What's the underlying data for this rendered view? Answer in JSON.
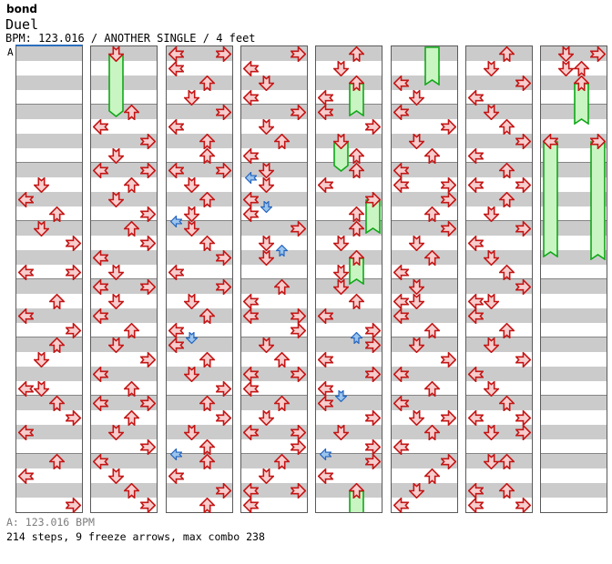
{
  "header": {
    "title": "bond",
    "song": "Duel",
    "meta": "BPM: 123.016 / ANOTHER SINGLE / 4 feet"
  },
  "footer": {
    "bpm_line": "A: 123.016 BPM",
    "stats_line": "214 steps, 9 freeze arrows, max combo 238"
  },
  "colors": {
    "stripe": "#cbcbcb",
    "arrow_red_border": "#c41616",
    "arrow_red_fill": "#f7cdcd",
    "arrow_blue_border": "#2465c0",
    "arrow_blue_fill": "#9cc5ec",
    "freeze_fill": "#c9f5c2",
    "freeze_border": "#10a818",
    "measure_line": "#858585",
    "column_border": "#5a5a5a",
    "section_line": "#2a6fc0"
  },
  "chart": {
    "section_label": "A",
    "rows_per_column": 32,
    "measures_per_column": 8,
    "columns": [
      {
        "arrows": [
          [
            9,
            "D"
          ],
          [
            10,
            "L"
          ],
          [
            11,
            "U"
          ],
          [
            12,
            "D"
          ],
          [
            13,
            "R"
          ],
          [
            15,
            "L"
          ],
          [
            15,
            "R"
          ],
          [
            17,
            "U"
          ],
          [
            18,
            "L"
          ],
          [
            19,
            "R"
          ],
          [
            20,
            "U"
          ],
          [
            21,
            "D"
          ],
          [
            23,
            "L"
          ],
          [
            23,
            "D"
          ],
          [
            24,
            "U"
          ],
          [
            25,
            "R"
          ],
          [
            26,
            "L"
          ],
          [
            28,
            "U"
          ],
          [
            29,
            "L"
          ],
          [
            31,
            "R"
          ]
        ],
        "freezes": []
      },
      {
        "arrows": [
          [
            0,
            "D"
          ],
          [
            4,
            "U"
          ],
          [
            5,
            "L"
          ],
          [
            6,
            "R"
          ],
          [
            7,
            "D"
          ],
          [
            8,
            "L"
          ],
          [
            8,
            "R"
          ],
          [
            9,
            "U"
          ],
          [
            10,
            "D"
          ],
          [
            11,
            "R"
          ],
          [
            12,
            "U"
          ],
          [
            13,
            "R"
          ],
          [
            14,
            "L"
          ],
          [
            15,
            "D"
          ],
          [
            16,
            "L"
          ],
          [
            16,
            "R"
          ],
          [
            17,
            "D"
          ],
          [
            18,
            "L"
          ],
          [
            19,
            "U"
          ],
          [
            20,
            "D"
          ],
          [
            21,
            "R"
          ],
          [
            22,
            "L"
          ],
          [
            23,
            "U"
          ],
          [
            24,
            "L"
          ],
          [
            24,
            "R"
          ],
          [
            25,
            "U"
          ],
          [
            26,
            "D"
          ],
          [
            27,
            "R"
          ],
          [
            28,
            "L"
          ],
          [
            29,
            "D"
          ],
          [
            30,
            "U"
          ],
          [
            31,
            "R"
          ]
        ],
        "freezes": [
          {
            "lane": "D",
            "start": 0,
            "end": 4.9,
            "head": true,
            "tail": "point"
          }
        ]
      },
      {
        "arrows": [
          [
            0,
            "L"
          ],
          [
            0,
            "R"
          ],
          [
            1,
            "L"
          ],
          [
            2,
            "U"
          ],
          [
            3,
            "D"
          ],
          [
            4,
            "R"
          ],
          [
            5,
            "L"
          ],
          [
            6,
            "U"
          ],
          [
            7,
            "U"
          ],
          [
            8,
            "L"
          ],
          [
            8,
            "R"
          ],
          [
            9,
            "D"
          ],
          [
            10,
            "U"
          ],
          [
            11,
            "D"
          ],
          [
            11.5,
            "L",
            "b"
          ],
          [
            12,
            "D"
          ],
          [
            13,
            "U"
          ],
          [
            14,
            "R"
          ],
          [
            15,
            "L"
          ],
          [
            16,
            "R"
          ],
          [
            17,
            "D"
          ],
          [
            18,
            "U"
          ],
          [
            19,
            "L"
          ],
          [
            19.5,
            "D",
            "b"
          ],
          [
            20,
            "L"
          ],
          [
            21,
            "U"
          ],
          [
            22,
            "D"
          ],
          [
            23,
            "R"
          ],
          [
            24,
            "U"
          ],
          [
            25,
            "R"
          ],
          [
            26,
            "D"
          ],
          [
            27,
            "U"
          ],
          [
            27.5,
            "L",
            "b"
          ],
          [
            28,
            "U"
          ],
          [
            29,
            "L"
          ],
          [
            30,
            "R"
          ],
          [
            31,
            "U"
          ]
        ],
        "freezes": []
      },
      {
        "arrows": [
          [
            0,
            "R"
          ],
          [
            1,
            "L"
          ],
          [
            2,
            "D"
          ],
          [
            3,
            "L"
          ],
          [
            4,
            "R"
          ],
          [
            5,
            "D"
          ],
          [
            6,
            "U"
          ],
          [
            7,
            "L"
          ],
          [
            8,
            "D"
          ],
          [
            8.5,
            "L",
            "b"
          ],
          [
            9,
            "D"
          ],
          [
            10,
            "L"
          ],
          [
            10.5,
            "D",
            "b"
          ],
          [
            11,
            "L"
          ],
          [
            12,
            "R"
          ],
          [
            13,
            "D"
          ],
          [
            13.5,
            "U",
            "b"
          ],
          [
            14,
            "D"
          ],
          [
            16,
            "U"
          ],
          [
            17,
            "L"
          ],
          [
            18,
            "L"
          ],
          [
            18,
            "R"
          ],
          [
            19,
            "R"
          ],
          [
            20,
            "D"
          ],
          [
            21,
            "U"
          ],
          [
            22,
            "L"
          ],
          [
            22,
            "R"
          ],
          [
            23,
            "L"
          ],
          [
            24,
            "U"
          ],
          [
            25,
            "D"
          ],
          [
            26,
            "L"
          ],
          [
            26,
            "R"
          ],
          [
            27,
            "R"
          ],
          [
            28,
            "U"
          ],
          [
            29,
            "D"
          ],
          [
            30,
            "L"
          ],
          [
            30,
            "R"
          ],
          [
            31,
            "L"
          ]
        ],
        "freezes": []
      },
      {
        "arrows": [
          [
            0,
            "U"
          ],
          [
            1,
            "D"
          ],
          [
            2,
            "U"
          ],
          [
            3,
            "L"
          ],
          [
            4,
            "L"
          ],
          [
            5,
            "R"
          ],
          [
            6,
            "D"
          ],
          [
            7,
            "U"
          ],
          [
            8,
            "U"
          ],
          [
            9,
            "L"
          ],
          [
            10,
            "R"
          ],
          [
            11,
            "U"
          ],
          [
            12,
            "U"
          ],
          [
            13,
            "D"
          ],
          [
            14,
            "U"
          ],
          [
            15,
            "D"
          ],
          [
            16,
            "D"
          ],
          [
            17,
            "U"
          ],
          [
            18,
            "L"
          ],
          [
            19,
            "R"
          ],
          [
            19.5,
            "U",
            "b"
          ],
          [
            20,
            "R"
          ],
          [
            21,
            "L"
          ],
          [
            22,
            "R"
          ],
          [
            23,
            "L"
          ],
          [
            23.5,
            "D",
            "b"
          ],
          [
            24,
            "L"
          ],
          [
            25,
            "R"
          ],
          [
            26,
            "D"
          ],
          [
            27,
            "R"
          ],
          [
            27.5,
            "L",
            "b"
          ],
          [
            28,
            "R"
          ],
          [
            29,
            "L"
          ],
          [
            30,
            "U"
          ]
        ],
        "freezes": [
          {
            "lane": "U",
            "start": 2,
            "end": 4.8,
            "head": true,
            "tail": "notch"
          },
          {
            "lane": "D",
            "start": 6,
            "end": 8.6,
            "head": true,
            "tail": "point"
          },
          {
            "lane": "R",
            "start": 10,
            "end": 12.9,
            "head": true,
            "tail": "notch"
          },
          {
            "lane": "U",
            "start": 14,
            "end": 16.4,
            "head": true,
            "tail": "notch"
          },
          {
            "lane": "U",
            "start": 30,
            "end": 32,
            "head": true,
            "tail": "none"
          }
        ]
      },
      {
        "arrows": [
          [
            2,
            "L"
          ],
          [
            3,
            "D"
          ],
          [
            4,
            "L"
          ],
          [
            5,
            "R"
          ],
          [
            6,
            "D"
          ],
          [
            7,
            "U"
          ],
          [
            8,
            "L"
          ],
          [
            9,
            "L"
          ],
          [
            9,
            "R"
          ],
          [
            10,
            "R"
          ],
          [
            11,
            "U"
          ],
          [
            12,
            "R"
          ],
          [
            13,
            "D"
          ],
          [
            14,
            "U"
          ],
          [
            15,
            "L"
          ],
          [
            16,
            "D"
          ],
          [
            17,
            "L"
          ],
          [
            17,
            "D"
          ],
          [
            18,
            "L"
          ],
          [
            19,
            "U"
          ],
          [
            20,
            "D"
          ],
          [
            21,
            "R"
          ],
          [
            22,
            "L"
          ],
          [
            23,
            "U"
          ],
          [
            24,
            "L"
          ],
          [
            25,
            "D"
          ],
          [
            25,
            "R"
          ],
          [
            26,
            "U"
          ],
          [
            27,
            "L"
          ],
          [
            28,
            "R"
          ],
          [
            29,
            "U"
          ],
          [
            30,
            "D"
          ],
          [
            31,
            "L"
          ]
        ],
        "freezes": [
          {
            "lane": "U",
            "start": 0,
            "end": 2.7,
            "head": false,
            "tail": "notch"
          }
        ]
      },
      {
        "arrows": [
          [
            0,
            "U"
          ],
          [
            1,
            "D"
          ],
          [
            2,
            "R"
          ],
          [
            3,
            "L"
          ],
          [
            4,
            "D"
          ],
          [
            5,
            "U"
          ],
          [
            6,
            "R"
          ],
          [
            7,
            "L"
          ],
          [
            8,
            "U"
          ],
          [
            9,
            "L"
          ],
          [
            9,
            "R"
          ],
          [
            10,
            "U"
          ],
          [
            11,
            "D"
          ],
          [
            12,
            "R"
          ],
          [
            13,
            "L"
          ],
          [
            14,
            "D"
          ],
          [
            15,
            "U"
          ],
          [
            16,
            "R"
          ],
          [
            17,
            "L"
          ],
          [
            17,
            "D"
          ],
          [
            18,
            "L"
          ],
          [
            19,
            "U"
          ],
          [
            20,
            "D"
          ],
          [
            21,
            "R"
          ],
          [
            22,
            "L"
          ],
          [
            23,
            "D"
          ],
          [
            24,
            "U"
          ],
          [
            25,
            "L"
          ],
          [
            25,
            "R"
          ],
          [
            26,
            "D"
          ],
          [
            26,
            "R"
          ],
          [
            28,
            "D"
          ],
          [
            28,
            "U"
          ],
          [
            30,
            "L"
          ],
          [
            30,
            "U"
          ],
          [
            31,
            "L"
          ],
          [
            31,
            "R"
          ]
        ],
        "freezes": []
      },
      {
        "arrows": [
          [
            0,
            "D"
          ],
          [
            0,
            "R"
          ],
          [
            1,
            "D"
          ],
          [
            1,
            "U"
          ],
          [
            2,
            "U"
          ],
          [
            6,
            "L"
          ],
          [
            6,
            "R"
          ]
        ],
        "freezes": [
          {
            "lane": "U",
            "start": 2,
            "end": 5.4,
            "head": true,
            "tail": "notch"
          },
          {
            "lane": "L",
            "start": 6,
            "end": 14.5,
            "head": true,
            "tail": "notch"
          },
          {
            "lane": "R",
            "start": 6,
            "end": 14.7,
            "head": true,
            "tail": "notch"
          }
        ]
      }
    ]
  }
}
